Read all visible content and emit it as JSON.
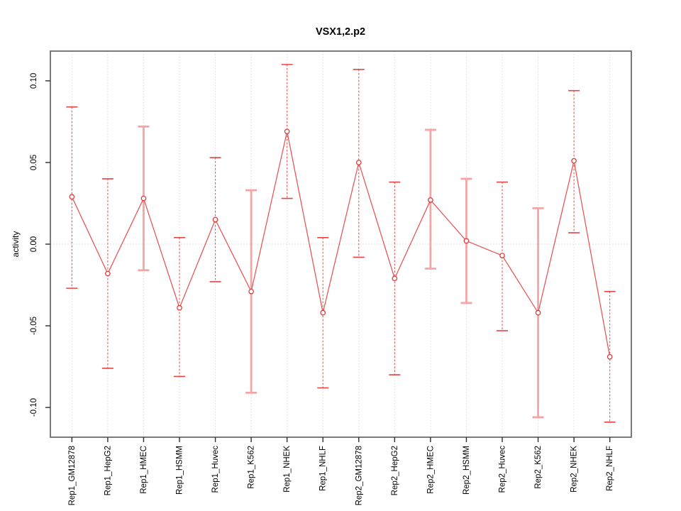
{
  "title": "VSX1,2.p2",
  "chart_data": {
    "type": "line",
    "title": "VSX1,2.p2",
    "xlabel": "",
    "ylabel": "activity",
    "marker": "open-circle",
    "legend": "none",
    "grid": "dotted vertical line at each category; dotted horizontal line at y=0",
    "categories": [
      "Rep1_GM12878",
      "Rep1_HepG2",
      "Rep1_HMEC",
      "Rep1_HSMM",
      "Rep1_Huvec",
      "Rep1_K562",
      "Rep1_NHEK",
      "Rep1_NHLF",
      "Rep2_GM12878",
      "Rep2_HepG2",
      "Rep2_HMEC",
      "Rep2_HSMM",
      "Rep2_Huvec",
      "Rep2_K562",
      "Rep2_NHEK",
      "Rep2_NHLF"
    ],
    "series": [
      {
        "name": "activity",
        "values": [
          0.029,
          -0.018,
          0.028,
          -0.039,
          0.015,
          -0.029,
          0.069,
          -0.042,
          0.05,
          -0.021,
          0.027,
          0.002,
          -0.007,
          -0.042,
          0.051,
          -0.069
        ],
        "upper": [
          0.084,
          0.04,
          0.072,
          0.004,
          0.053,
          0.033,
          0.11,
          0.004,
          0.107,
          0.038,
          0.07,
          0.04,
          0.038,
          0.022,
          0.094,
          -0.029
        ],
        "lower": [
          -0.027,
          -0.076,
          -0.016,
          -0.081,
          -0.023,
          -0.091,
          0.028,
          -0.088,
          -0.008,
          -0.08,
          -0.015,
          -0.036,
          -0.053,
          -0.106,
          0.007,
          -0.109
        ],
        "whisker_styles": [
          "thin",
          "thin",
          "thick",
          "thin",
          "thin",
          "thick",
          "thin",
          "thin",
          "thin",
          "thin",
          "thick",
          "thick",
          "thin",
          "thick",
          "thin",
          "thin"
        ]
      }
    ],
    "yticks": [
      -0.1,
      -0.05,
      0.0,
      0.05,
      0.1
    ],
    "ytick_labels": [
      "-0.10",
      "-0.05",
      "0.00",
      "0.05",
      "0.10"
    ],
    "ylim": [
      -0.1182,
      0.1182
    ],
    "colors": {
      "line": "#e84b4b",
      "point_stroke": "#e03b3b",
      "whisker_thin": "#ef5350",
      "whisker_thin_cap": "#e94343",
      "whisker_thick": "#f6a5a5",
      "gridline": "#dbdbdb",
      "box": "#6b6b6b",
      "tick": "#2f2f2f",
      "text": "#000000"
    }
  }
}
